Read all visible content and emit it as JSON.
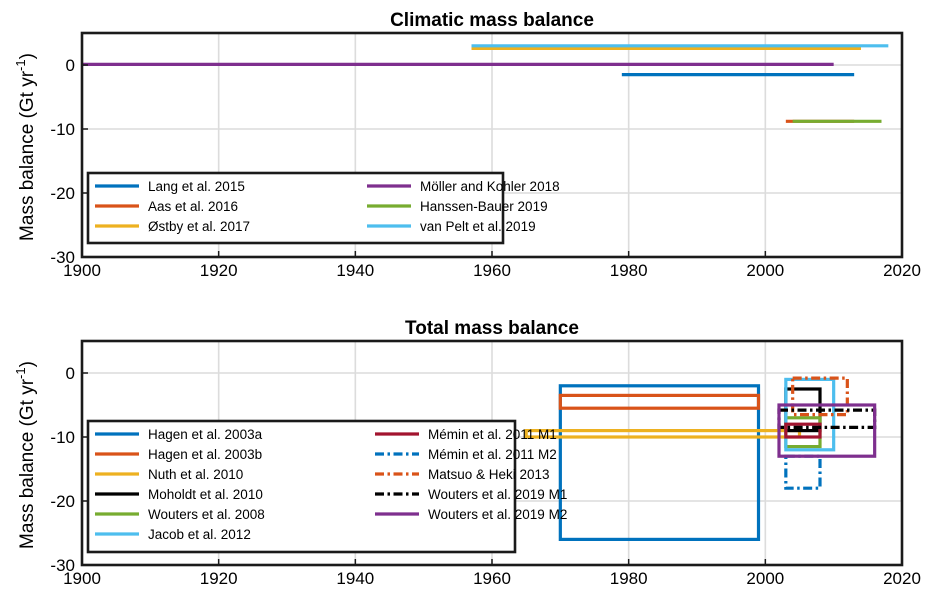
{
  "chart_data": [
    {
      "type": "line",
      "title": "Climatic mass balance",
      "xlabel": "",
      "ylabel": "Mass balance (Gt yr",
      "ylabel_sup": "-1",
      "ylabel_close": ")",
      "xlim": [
        1900,
        2020
      ],
      "ylim": [
        -30,
        5
      ],
      "xticks": [
        "1900",
        "1920",
        "1940",
        "1960",
        "1980",
        "2000",
        "2020"
      ],
      "yticks": [
        "0",
        "-10",
        "-20",
        "-30"
      ],
      "grid": true,
      "legend_position": "bottom-left",
      "series": [
        {
          "name": "Lang et al. 2015",
          "color": "#0072BD",
          "style": "solid",
          "shape": "line",
          "x": [
            1979,
            2013
          ],
          "y": [
            -1.5,
            -1.5
          ]
        },
        {
          "name": "Aas et al. 2016",
          "color": "#D95319",
          "style": "solid",
          "shape": "line",
          "x": [
            2003,
            2013
          ],
          "y": [
            -8.8,
            -8.8
          ]
        },
        {
          "name": "Østby et al. 2017",
          "color": "#EDB120",
          "style": "solid",
          "shape": "line",
          "x": [
            1957,
            2014
          ],
          "y": [
            2.6,
            2.6
          ]
        },
        {
          "name": "Möller and Kohler 2018",
          "color": "#7E2F8E",
          "style": "solid",
          "shape": "line",
          "x": [
            1900,
            2010
          ],
          "y": [
            0.1,
            0.1
          ]
        },
        {
          "name": "Hanssen-Bauer 2019",
          "color": "#77AC30",
          "style": "solid",
          "shape": "line",
          "x": [
            2004,
            2017
          ],
          "y": [
            -8.8,
            -8.8
          ]
        },
        {
          "name": "van Pelt et al. 2019",
          "color": "#4DBEEE",
          "style": "solid",
          "shape": "line",
          "x": [
            1957,
            2018
          ],
          "y": [
            3.0,
            3.0
          ]
        }
      ]
    },
    {
      "type": "line",
      "title": "Total mass balance",
      "xlabel": "",
      "ylabel": "Mass balance (Gt yr",
      "ylabel_sup": "-1",
      "ylabel_close": ")",
      "xlim": [
        1900,
        2020
      ],
      "ylim": [
        -30,
        5
      ],
      "xticks": [
        "1900",
        "1920",
        "1940",
        "1960",
        "1980",
        "2000",
        "2020"
      ],
      "yticks": [
        "0",
        "-10",
        "-20",
        "-30"
      ],
      "grid": true,
      "legend_position": "bottom-left",
      "series": [
        {
          "name": "Hagen et al. 2003a",
          "color": "#0072BD",
          "style": "solid",
          "shape": "box",
          "x": [
            1970,
            1999
          ],
          "y": [
            -26,
            -2
          ]
        },
        {
          "name": "Hagen et al. 2003b",
          "color": "#D95319",
          "style": "solid",
          "shape": "box",
          "x": [
            1970,
            1999
          ],
          "y": [
            -5.5,
            -3.5
          ]
        },
        {
          "name": "Nuth et al. 2010",
          "color": "#EDB120",
          "style": "solid",
          "shape": "box",
          "x": [
            1965,
            2005
          ],
          "y": [
            -10,
            -9
          ]
        },
        {
          "name": "Moholdt et al. 2010",
          "color": "#000000",
          "style": "solid",
          "shape": "box",
          "x": [
            2003,
            2008
          ],
          "y": [
            -9,
            -2.5
          ]
        },
        {
          "name": "Wouters et al. 2008",
          "color": "#77AC30",
          "style": "solid",
          "shape": "box",
          "x": [
            2003,
            2008
          ],
          "y": [
            -11.5,
            -7
          ]
        },
        {
          "name": "Jacob et al. 2012",
          "color": "#4DBEEE",
          "style": "solid",
          "shape": "box",
          "x": [
            2003,
            2010
          ],
          "y": [
            -12,
            -1
          ]
        },
        {
          "name": "Mémin et al. 2011 M1",
          "color": "#A2142F",
          "style": "solid",
          "shape": "box",
          "x": [
            2003,
            2008
          ],
          "y": [
            -10,
            -8
          ]
        },
        {
          "name": "Mémin et al. 2011 M2",
          "color": "#0072BD",
          "style": "dashdot",
          "shape": "box",
          "x": [
            2003,
            2008
          ],
          "y": [
            -18,
            -13
          ]
        },
        {
          "name": "Matsuo & Heki 2013",
          "color": "#D95319",
          "style": "dashdot",
          "shape": "box",
          "x": [
            2004,
            2012
          ],
          "y": [
            -6.5,
            -0.8
          ]
        },
        {
          "name": "Wouters et al. 2019 M1",
          "color": "#000000",
          "style": "dashdot",
          "shape": "box",
          "x": [
            2002,
            2016
          ],
          "y": [
            -8.5,
            -5.8
          ]
        },
        {
          "name": "Wouters et al. 2019 M2",
          "color": "#7E2F8E",
          "style": "solid",
          "shape": "box",
          "x": [
            2002,
            2016
          ],
          "y": [
            -13,
            -5
          ]
        }
      ]
    }
  ]
}
